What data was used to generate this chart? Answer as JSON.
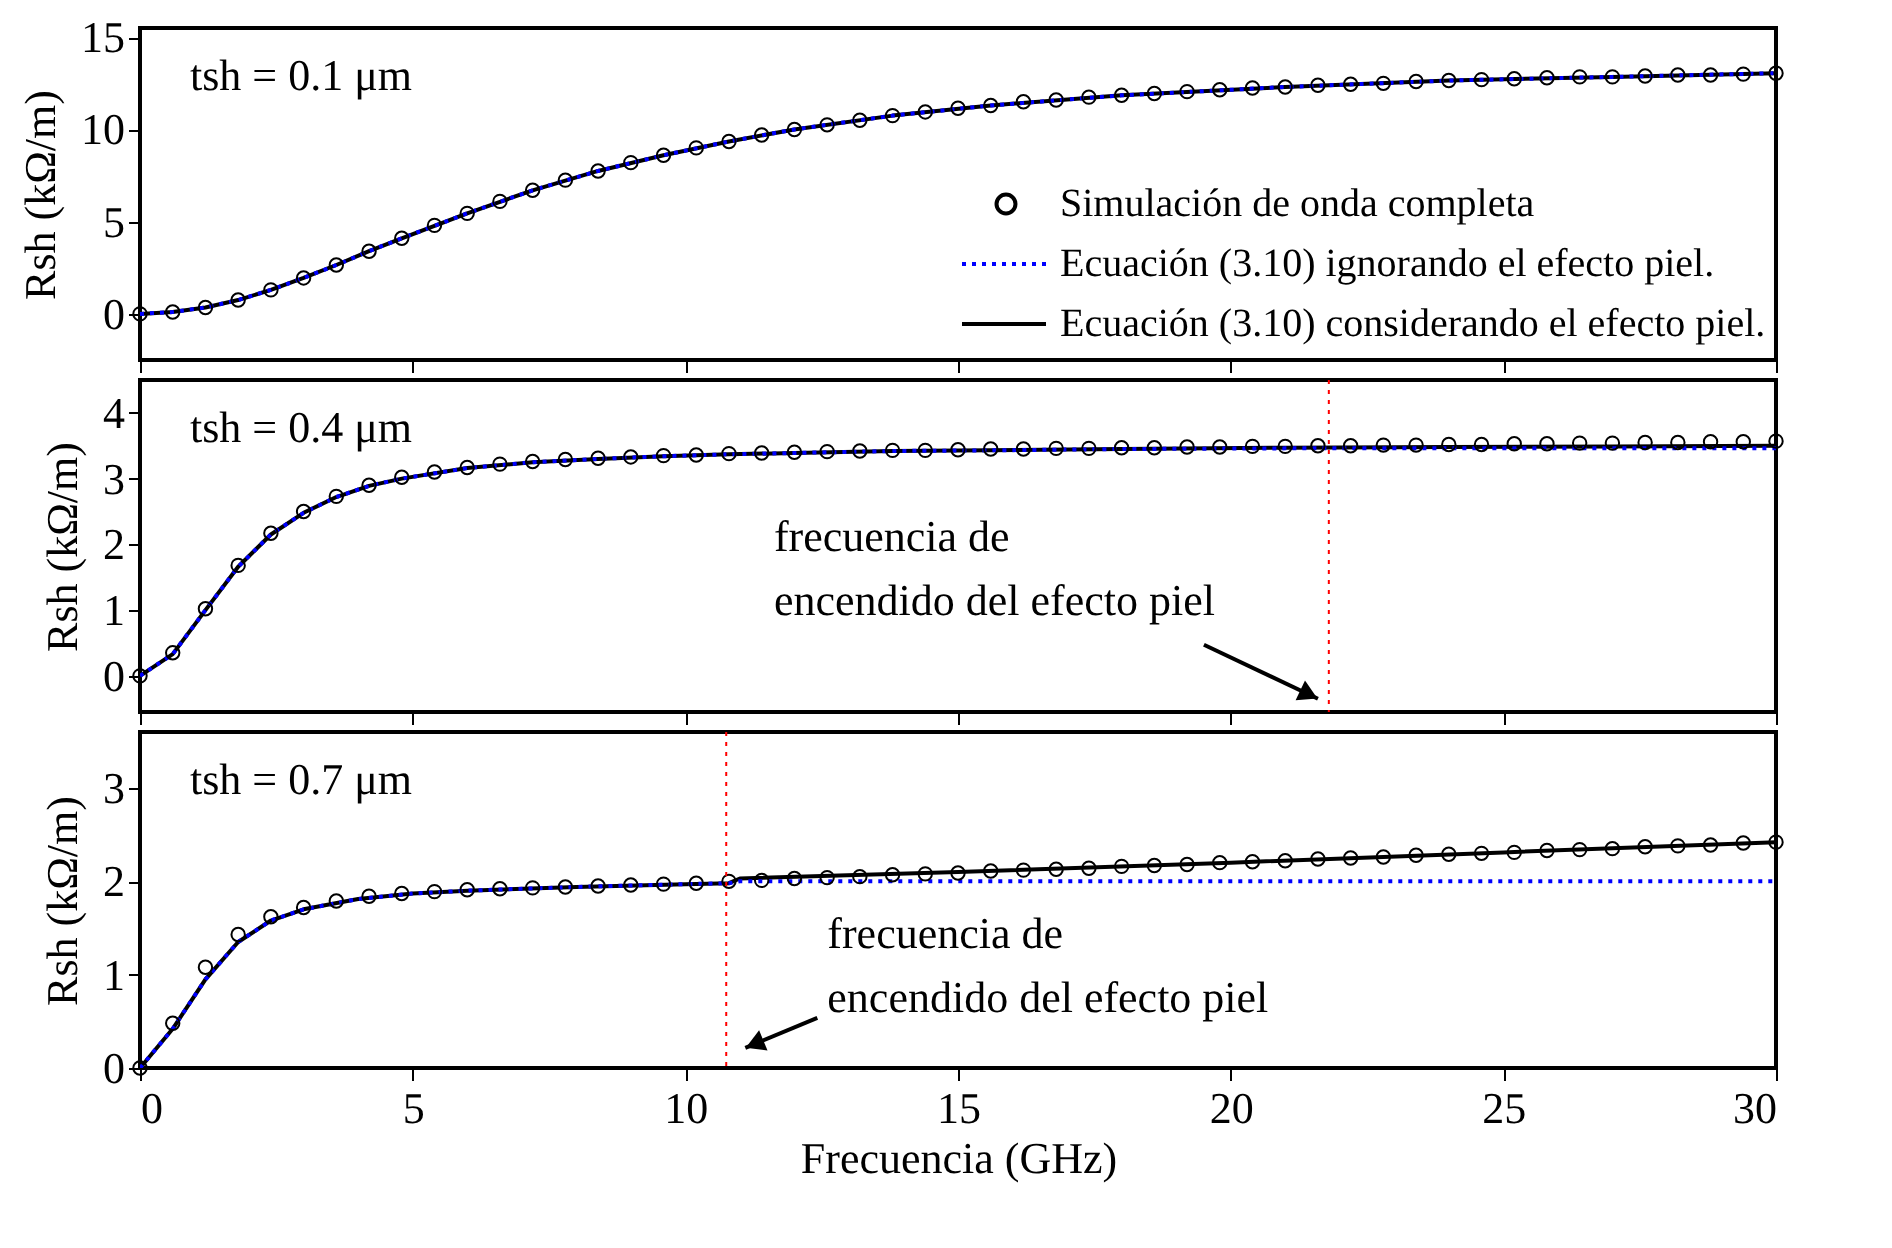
{
  "chart_data": [
    {
      "type": "line",
      "title": "tsh = 0.1 μm",
      "ylabel": "Rsh (kΩ/m)",
      "xlim": [
        0,
        30
      ],
      "xticks": [
        0,
        5,
        10,
        15,
        20,
        25,
        30
      ],
      "ylim": [
        -2.5,
        15.5
      ],
      "yticks": [
        0,
        5,
        10,
        15
      ],
      "tick_labels": "y",
      "grid": false,
      "legend": "bottom right",
      "series": [
        {
          "name": "Simulación de onda completa",
          "type": "scatter",
          "marker": "circle",
          "color": "#000000",
          "x": [
            0,
            0.6,
            1.2,
            1.8,
            2.4,
            3.0,
            3.6,
            4.2,
            4.8,
            5.4,
            6.0,
            6.6,
            7.2,
            7.8,
            8.4,
            9.0,
            9.6,
            10.2,
            10.8,
            11.4,
            12.0,
            12.6,
            13.2,
            13.8,
            14.4,
            15.0,
            15.6,
            16.2,
            16.8,
            17.4,
            18.0,
            18.6,
            19.2,
            19.8,
            20.4,
            21.0,
            21.6,
            22.2,
            22.8,
            23.4,
            24.0,
            24.6,
            25.2,
            25.8,
            26.4,
            27.0,
            27.6,
            28.2,
            28.8,
            29.4,
            30.0
          ],
          "values": [
            0,
            0.1,
            0.35,
            0.75,
            1.3,
            1.95,
            2.65,
            3.4,
            4.1,
            4.8,
            5.45,
            6.1,
            6.7,
            7.25,
            7.75,
            8.2,
            8.6,
            9.0,
            9.35,
            9.7,
            10.0,
            10.25,
            10.5,
            10.75,
            10.95,
            11.15,
            11.3,
            11.5,
            11.6,
            11.75,
            11.85,
            11.95,
            12.05,
            12.15,
            12.25,
            12.3,
            12.4,
            12.45,
            12.5,
            12.6,
            12.65,
            12.7,
            12.75,
            12.8,
            12.85,
            12.85,
            12.9,
            12.95,
            12.95,
            13.0,
            13.05
          ]
        },
        {
          "name": "Ecuación (3.10) ignorando el efecto piel.",
          "line_style": "dotted",
          "color": "#0000ff",
          "x": [
            0,
            0.6,
            1.2,
            1.8,
            2.4,
            3,
            3.6,
            4.2,
            4.8,
            6,
            7.2,
            8.4,
            9.6,
            10.8,
            12,
            13.8,
            15.6,
            18,
            21,
            24,
            27,
            30
          ],
          "values": [
            0,
            0.1,
            0.35,
            0.75,
            1.3,
            1.95,
            2.65,
            3.4,
            4.1,
            5.45,
            6.7,
            7.75,
            8.6,
            9.35,
            10.0,
            10.75,
            11.3,
            11.85,
            12.3,
            12.65,
            12.85,
            13.05
          ]
        },
        {
          "name": "Ecuación (3.10) considerando el efecto piel.",
          "line_style": "solid",
          "color": "#000000",
          "x": [
            0,
            0.6,
            1.2,
            1.8,
            2.4,
            3,
            3.6,
            4.2,
            4.8,
            6,
            7.2,
            8.4,
            9.6,
            10.8,
            12,
            13.8,
            15.6,
            18,
            21,
            24,
            27,
            30
          ],
          "values": [
            0,
            0.1,
            0.35,
            0.75,
            1.3,
            1.95,
            2.65,
            3.4,
            4.1,
            5.45,
            6.7,
            7.75,
            8.6,
            9.35,
            10.0,
            10.75,
            11.3,
            11.85,
            12.3,
            12.65,
            12.85,
            13.05
          ]
        }
      ]
    },
    {
      "type": "line",
      "title": "tsh = 0.4 μm",
      "ylabel": "Rsh (kΩ/m)",
      "xlim": [
        0,
        30
      ],
      "xticks": [
        0,
        5,
        10,
        15,
        20,
        25,
        30
      ],
      "ylim": [
        -0.55,
        4.5
      ],
      "yticks": [
        0,
        1,
        2,
        3,
        4
      ],
      "tick_labels": "y",
      "grid": false,
      "annotations": [
        "frecuencia de\nencendido del efecto piel"
      ],
      "ref_lines": [
        {
          "axis": "x",
          "value": 21.8,
          "color": "#ff0000",
          "line_style": "dotted"
        }
      ],
      "series": [
        {
          "type": "scatter",
          "marker": "circle",
          "color": "#000000",
          "x": [
            0,
            0.6,
            1.2,
            1.8,
            2.4,
            3.0,
            3.6,
            4.2,
            4.8,
            5.4,
            6.0,
            6.6,
            7.2,
            7.8,
            8.4,
            9.0,
            9.6,
            10.2,
            10.8,
            11.4,
            12.0,
            12.6,
            13.2,
            13.8,
            14.4,
            15.0,
            15.6,
            16.2,
            16.8,
            17.4,
            18.0,
            18.6,
            19.2,
            19.8,
            20.4,
            21.0,
            21.6,
            22.2,
            22.8,
            23.4,
            24.0,
            24.6,
            25.2,
            25.8,
            26.4,
            27.0,
            27.6,
            28.2,
            28.8,
            29.4,
            30.0
          ],
          "values": [
            0,
            0.35,
            1.02,
            1.68,
            2.17,
            2.5,
            2.73,
            2.9,
            3.02,
            3.1,
            3.17,
            3.22,
            3.26,
            3.29,
            3.31,
            3.33,
            3.35,
            3.36,
            3.38,
            3.39,
            3.4,
            3.41,
            3.42,
            3.43,
            3.43,
            3.44,
            3.45,
            3.45,
            3.46,
            3.46,
            3.47,
            3.47,
            3.48,
            3.48,
            3.49,
            3.49,
            3.5,
            3.5,
            3.51,
            3.51,
            3.52,
            3.52,
            3.53,
            3.53,
            3.54,
            3.54,
            3.55,
            3.55,
            3.56,
            3.56,
            3.57
          ]
        },
        {
          "line_style": "dotted",
          "color": "#0000ff",
          "x": [
            0,
            0.6,
            1.2,
            1.8,
            2.4,
            3,
            3.6,
            4.2,
            4.8,
            6,
            7.2,
            8.4,
            9.6,
            10.8,
            12,
            13.8,
            15.6,
            18,
            21,
            24,
            27,
            30
          ],
          "values": [
            0,
            0.33,
            1.0,
            1.66,
            2.15,
            2.48,
            2.72,
            2.89,
            3.0,
            3.16,
            3.25,
            3.3,
            3.34,
            3.37,
            3.39,
            3.42,
            3.43,
            3.45,
            3.46,
            3.46,
            3.46,
            3.46
          ]
        },
        {
          "line_style": "solid",
          "color": "#000000",
          "x": [
            0,
            0.6,
            1.2,
            1.8,
            2.4,
            3,
            3.6,
            4.2,
            4.8,
            6,
            7.2,
            8.4,
            9.6,
            10.8,
            12,
            13.8,
            15.6,
            18,
            21,
            24,
            27,
            30
          ],
          "values": [
            0,
            0.33,
            1.0,
            1.66,
            2.15,
            2.48,
            2.72,
            2.89,
            3.0,
            3.16,
            3.25,
            3.3,
            3.34,
            3.37,
            3.39,
            3.42,
            3.43,
            3.45,
            3.47,
            3.48,
            3.49,
            3.5
          ]
        }
      ]
    },
    {
      "type": "line",
      "title": "tsh = 0.7 μm",
      "xlabel": "Frecuencia (GHz)",
      "ylabel": "Rsh (kΩ/m)",
      "xlim": [
        0,
        30
      ],
      "xticks": [
        0,
        5,
        10,
        15,
        20,
        25,
        30
      ],
      "ylim": [
        0,
        3.6
      ],
      "yticks": [
        0,
        1,
        2,
        3
      ],
      "grid": false,
      "annotations": [
        "frecuencia de\nencendido del efecto piel"
      ],
      "ref_lines": [
        {
          "axis": "x",
          "value": 10.75,
          "color": "#ff0000",
          "line_style": "dotted"
        }
      ],
      "series": [
        {
          "type": "scatter",
          "marker": "circle",
          "color": "#000000",
          "x": [
            0,
            0.6,
            1.2,
            1.8,
            2.4,
            3.0,
            3.6,
            4.2,
            4.8,
            5.4,
            6.0,
            6.6,
            7.2,
            7.8,
            8.4,
            9.0,
            9.6,
            10.2,
            10.8,
            11.4,
            12.0,
            12.6,
            13.2,
            13.8,
            14.4,
            15.0,
            15.6,
            16.2,
            16.8,
            17.4,
            18.0,
            18.6,
            19.2,
            19.8,
            20.4,
            21.0,
            21.6,
            22.2,
            22.8,
            23.4,
            24.0,
            24.6,
            25.2,
            25.8,
            26.4,
            27.0,
            27.6,
            28.2,
            28.8,
            29.4,
            30.0
          ],
          "values": [
            0,
            0.48,
            1.08,
            1.43,
            1.62,
            1.72,
            1.79,
            1.84,
            1.87,
            1.89,
            1.91,
            1.92,
            1.93,
            1.94,
            1.95,
            1.96,
            1.97,
            1.98,
            2.0,
            2.01,
            2.03,
            2.04,
            2.05,
            2.07,
            2.08,
            2.09,
            2.11,
            2.12,
            2.13,
            2.14,
            2.16,
            2.17,
            2.18,
            2.2,
            2.21,
            2.22,
            2.24,
            2.25,
            2.26,
            2.28,
            2.29,
            2.3,
            2.31,
            2.33,
            2.34,
            2.35,
            2.37,
            2.38,
            2.39,
            2.41,
            2.42
          ]
        },
        {
          "line_style": "dotted",
          "color": "#0000ff",
          "x": [
            0,
            0.6,
            1.2,
            1.8,
            2.4,
            3,
            4,
            5,
            6,
            8,
            10,
            10.8,
            11,
            15,
            20,
            25,
            30
          ],
          "values": [
            0,
            0.42,
            0.95,
            1.35,
            1.58,
            1.7,
            1.81,
            1.87,
            1.9,
            1.94,
            1.97,
            1.98,
            2.0,
            2.0,
            2.0,
            2.0,
            2.0
          ]
        },
        {
          "line_style": "solid",
          "color": "#000000",
          "x": [
            0,
            0.6,
            1.2,
            1.8,
            2.4,
            3,
            4,
            5,
            6,
            8,
            10,
            10.8,
            11,
            15,
            20,
            25,
            30
          ],
          "values": [
            0,
            0.42,
            0.95,
            1.35,
            1.58,
            1.7,
            1.81,
            1.87,
            1.9,
            1.94,
            1.97,
            1.98,
            2.03,
            2.1,
            2.2,
            2.31,
            2.42
          ]
        }
      ]
    }
  ]
}
